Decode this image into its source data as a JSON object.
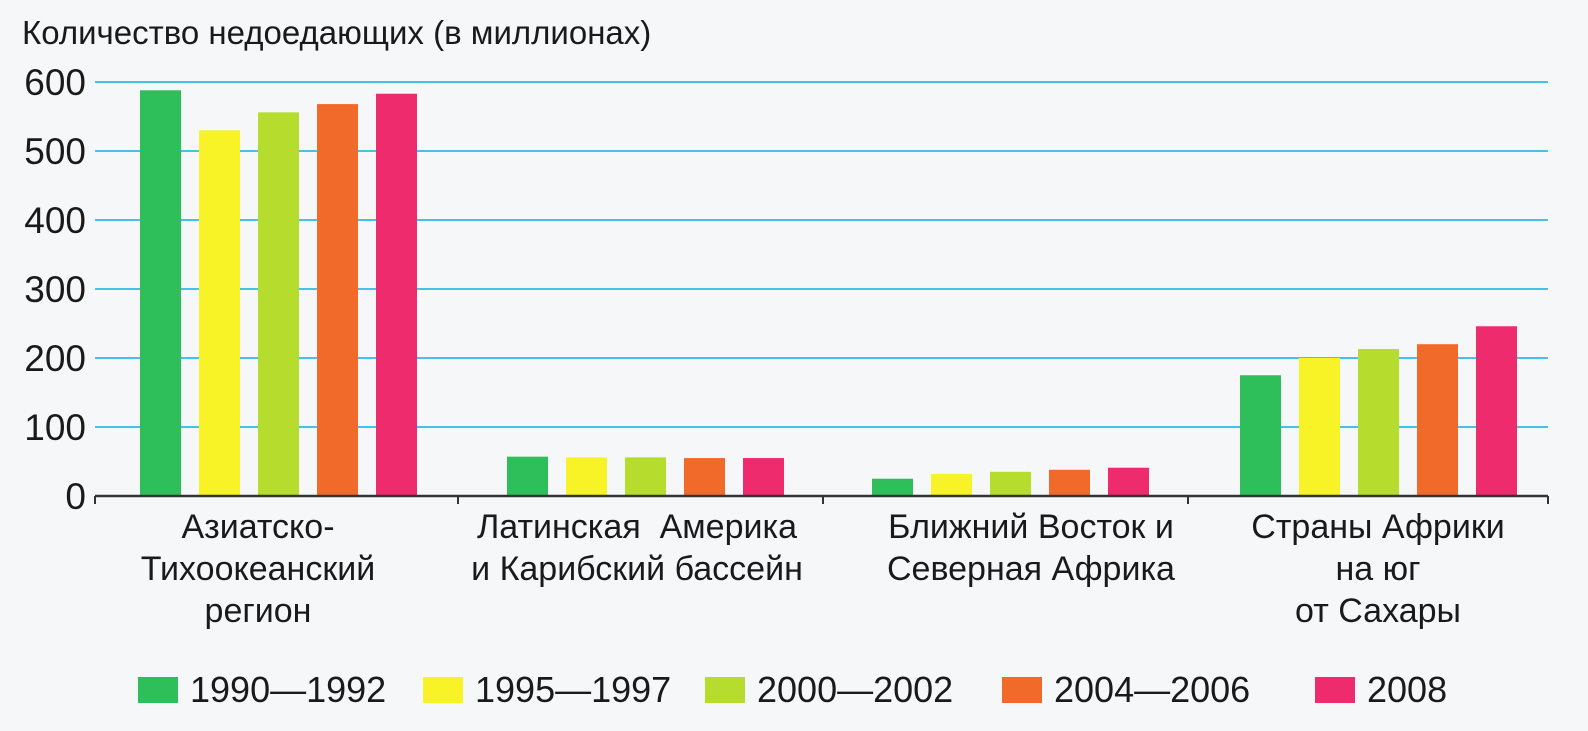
{
  "chart_data": {
    "type": "bar",
    "ylabel": "Количество недоедающих (в миллионах)",
    "ylim": [
      0,
      600
    ],
    "yticks": [
      0,
      100,
      200,
      300,
      400,
      500,
      600
    ],
    "grid": true,
    "legend_position": "bottom",
    "categories": [
      [
        "Азиатско-",
        "Тихоокеанский",
        "регион"
      ],
      [
        "Латинская  Америка",
        "и Карибский бассейн"
      ],
      [
        "Ближний Восток и",
        "Северная Африка"
      ],
      [
        "Страны Африки",
        "на юг",
        "от Сахары"
      ]
    ],
    "series": [
      {
        "name": "1990—1992",
        "color": "#2fbf5a",
        "values": [
          588,
          57,
          25,
          175
        ]
      },
      {
        "name": "1995—1997",
        "color": "#f7f326",
        "values": [
          530,
          56,
          32,
          200
        ]
      },
      {
        "name": "2000—2002",
        "color": "#b6dc2e",
        "values": [
          556,
          56,
          35,
          213
        ]
      },
      {
        "name": "2004—2006",
        "color": "#f26a2a",
        "values": [
          568,
          55,
          38,
          220
        ]
      },
      {
        "name": "2008",
        "color": "#ee2b6c",
        "values": [
          583,
          55,
          41,
          246
        ]
      }
    ],
    "colors": {
      "grid": "#48c1e6",
      "axis": "#333333"
    }
  }
}
